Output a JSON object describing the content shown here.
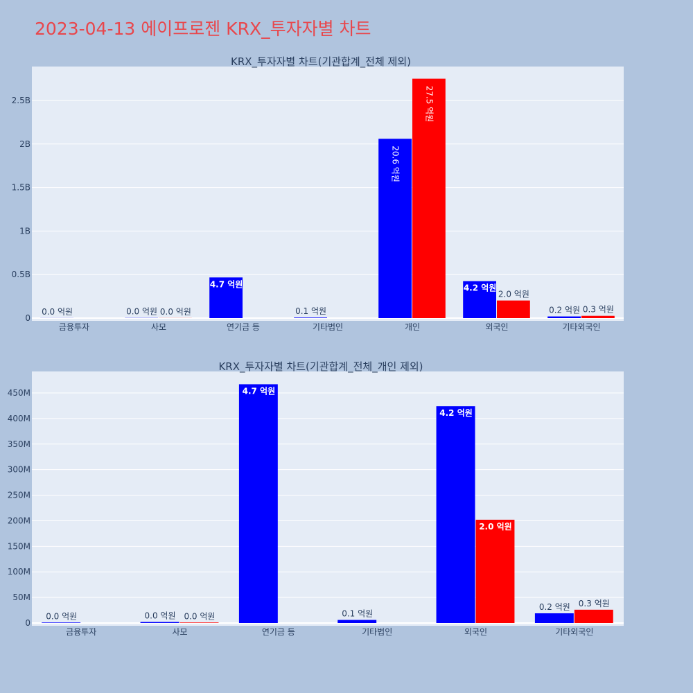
{
  "page": {
    "title": "2023-04-13 에이프로젠 KRX_투자자별 차트"
  },
  "colors": {
    "background": "#b0c4de",
    "plot_bg": "#e5ecf6",
    "title": "#e8474c",
    "series_a": "#0000ff",
    "series_b": "#ff0000",
    "text": "#2a3f5f"
  },
  "chart_data": [
    {
      "type": "bar",
      "title": "KRX_투자자별 차트(기관합계_전체 제외)",
      "categories": [
        "금융투자",
        "사모",
        "연기금 등",
        "기타법인",
        "개인",
        "외국인",
        "기타외국인"
      ],
      "ylim": [
        0,
        2890000000
      ],
      "yticks": [
        0,
        500000000,
        1000000000,
        1500000000,
        2000000000,
        2500000000
      ],
      "ytick_labels": [
        "0",
        "0.5B",
        "1B",
        "1.5B",
        "2B",
        "2.5B"
      ],
      "grid": true,
      "series": [
        {
          "values": [
            1000000,
            2000000,
            467000000,
            6000000,
            2060000000,
            424000000,
            19000000
          ],
          "labels": [
            "0.0 억원",
            "0.0 억원",
            "4.7 억원",
            "0.1 억원",
            "20.6 억원",
            "4.2 억원",
            "0.2 억원"
          ]
        },
        {
          "values": [
            0,
            1000000,
            0,
            0,
            2750000000,
            202000000,
            26000000
          ],
          "labels": [
            "",
            "0.0 억원",
            "",
            "",
            "27.5 억원",
            "2.0 억원",
            "0.3 억원"
          ]
        }
      ]
    },
    {
      "type": "bar",
      "title": "KRX_투자자별 차트(기관합계_전체_개인 제외)",
      "categories": [
        "금융투자",
        "사모",
        "연기금 등",
        "기타법인",
        "외국인",
        "기타외국인"
      ],
      "ylim": [
        0,
        492000000
      ],
      "yticks": [
        0,
        50000000,
        100000000,
        150000000,
        200000000,
        250000000,
        300000000,
        350000000,
        400000000,
        450000000
      ],
      "ytick_labels": [
        "0",
        "50M",
        "100M",
        "150M",
        "200M",
        "250M",
        "300M",
        "350M",
        "400M",
        "450M"
      ],
      "grid": true,
      "series": [
        {
          "values": [
            1000000,
            2000000,
            467000000,
            6000000,
            424000000,
            19000000
          ],
          "labels": [
            "0.0 억원",
            "0.0 억원",
            "4.7 억원",
            "0.1 억원",
            "4.2 억원",
            "0.2 억원"
          ]
        },
        {
          "values": [
            0,
            1000000,
            0,
            0,
            202000000,
            26000000
          ],
          "labels": [
            "",
            "0.0 억원",
            "",
            "",
            "2.0 억원",
            "0.3 억원"
          ]
        }
      ]
    }
  ]
}
